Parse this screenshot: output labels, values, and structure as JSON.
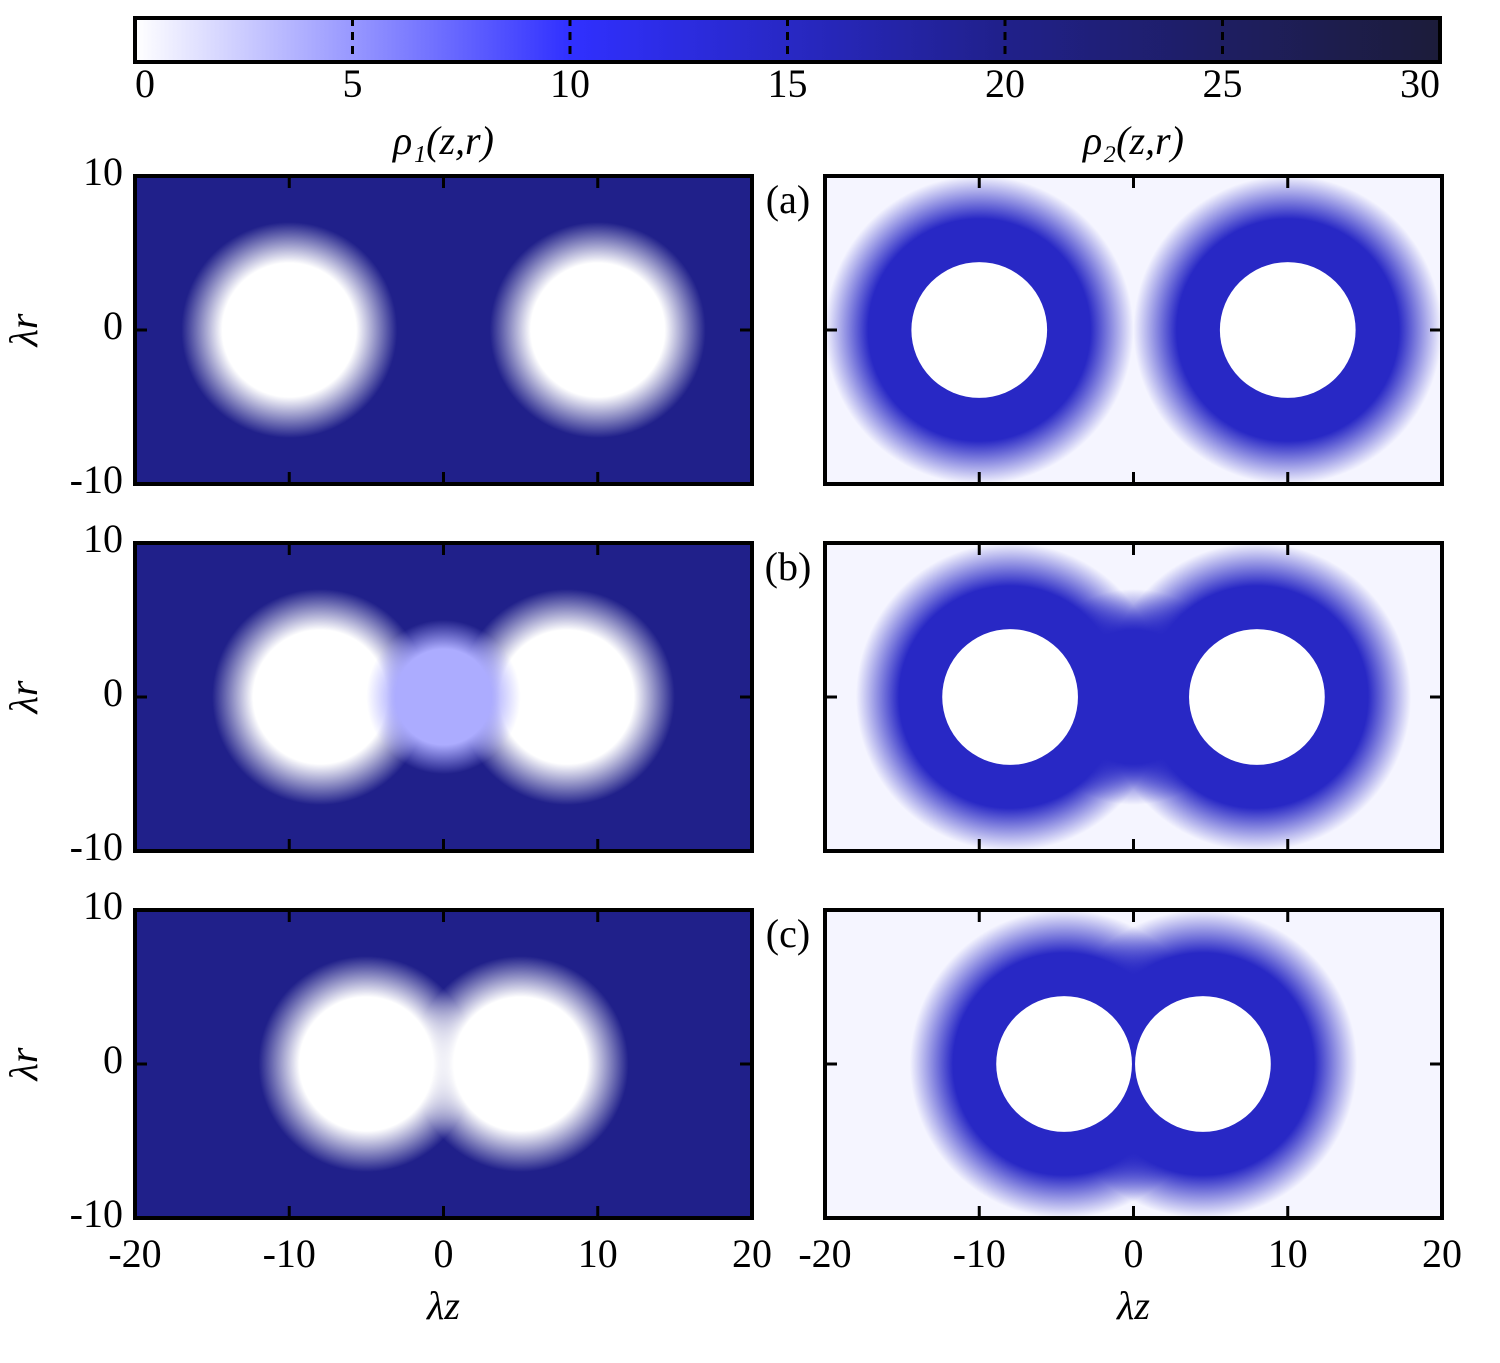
{
  "chart_data": [
    {
      "type": "colorbar",
      "clim": [
        0,
        30
      ],
      "ticks": [
        0,
        5,
        10,
        15,
        20,
        25,
        30
      ],
      "colormap": [
        "#ffffff",
        "#3030ff",
        "#20208a",
        "#1c1c3a"
      ]
    },
    {
      "type": "heatmap",
      "title": "ρ₁(z,r)",
      "ylabel": "λr",
      "panel_label": "(a)",
      "xlim": [
        -20,
        20
      ],
      "ylim": [
        -10,
        10
      ],
      "yticks": [
        -10,
        0,
        10
      ],
      "background": 20,
      "blobs": [
        {
          "z": -10,
          "r": 0,
          "value": 0,
          "radius": 7
        },
        {
          "z": 10,
          "r": 0,
          "value": 0,
          "radius": 7
        }
      ]
    },
    {
      "type": "heatmap",
      "title": "ρ₂(z,r)",
      "xlim": [
        -20,
        20
      ],
      "ylim": [
        -10,
        10
      ],
      "background": 0.5,
      "blobs": [
        {
          "z": -10,
          "r": 0,
          "value": 15,
          "radius": 10,
          "core_radius": 4.4,
          "core_value": 0
        },
        {
          "z": 10,
          "r": 0,
          "value": 15,
          "radius": 10,
          "core_radius": 4.4,
          "core_value": 0
        }
      ]
    },
    {
      "type": "heatmap",
      "ylabel": "λr",
      "panel_label": "(b)",
      "xlim": [
        -20,
        20
      ],
      "ylim": [
        -10,
        10
      ],
      "yticks": [
        -10,
        0,
        10
      ],
      "background": 20,
      "blobs": [
        {
          "z": -8,
          "r": 0,
          "value": 0,
          "radius": 7
        },
        {
          "z": 8,
          "r": 0,
          "value": 0,
          "radius": 7
        },
        {
          "z": 0,
          "r": 0,
          "value": 4,
          "radius": 5
        }
      ]
    },
    {
      "type": "heatmap",
      "xlim": [
        -20,
        20
      ],
      "ylim": [
        -10,
        10
      ],
      "background": 0.5,
      "blobs": [
        {
          "z": -8,
          "r": 0,
          "value": 15,
          "radius": 10,
          "core_radius": 4.4,
          "core_value": 0
        },
        {
          "z": 8,
          "r": 0,
          "value": 15,
          "radius": 10,
          "core_radius": 4.4,
          "core_value": 0
        },
        {
          "z": 0,
          "r": 0,
          "value": 15,
          "radius": 7
        }
      ]
    },
    {
      "type": "heatmap",
      "ylabel": "λr",
      "xlabel": "λz",
      "panel_label": "(c)",
      "xlim": [
        -20,
        20
      ],
      "ylim": [
        -10,
        10
      ],
      "xticks": [
        -20,
        -10,
        0,
        10,
        20
      ],
      "yticks": [
        -10,
        0,
        10
      ],
      "background": 20,
      "blobs": [
        {
          "z": -5,
          "r": 0,
          "value": 0,
          "radius": 7
        },
        {
          "z": 5,
          "r": 0,
          "value": 0,
          "radius": 7
        }
      ]
    },
    {
      "type": "heatmap",
      "xlabel": "λz",
      "xlim": [
        -20,
        20
      ],
      "ylim": [
        -10,
        10
      ],
      "xticks": [
        -20,
        -10,
        0,
        10,
        20
      ],
      "background": 0.5,
      "blobs": [
        {
          "z": -4.5,
          "r": 0,
          "value": 15,
          "radius": 10,
          "core_radius": 4.4,
          "core_value": 0
        },
        {
          "z": 4.5,
          "r": 0,
          "value": 15,
          "radius": 10,
          "core_radius": 4.4,
          "core_value": 0
        }
      ]
    }
  ]
}
